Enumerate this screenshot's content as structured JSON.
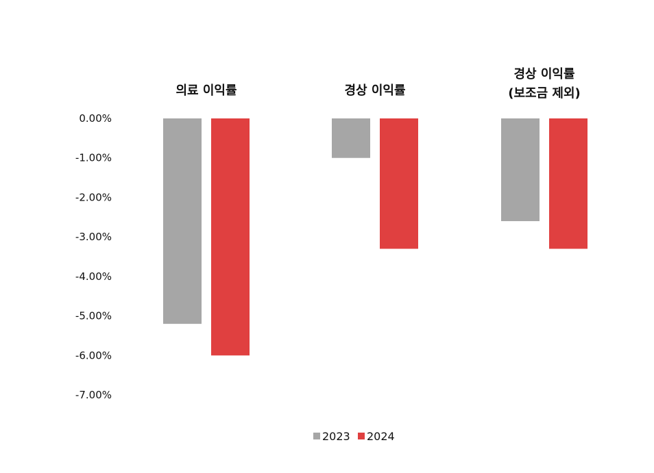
{
  "chart_data": {
    "type": "bar",
    "categories": [
      [
        "의료 이익률"
      ],
      [
        "경상 이익률"
      ],
      [
        "경상 이익률",
        "(보조금 제외)"
      ]
    ],
    "series": [
      {
        "name": "2023",
        "color": "#a6a6a6",
        "values": [
          -5.2,
          -1.0,
          -2.6
        ]
      },
      {
        "name": "2024",
        "color": "#e04040",
        "values": [
          -6.0,
          -3.3,
          -3.3
        ]
      }
    ],
    "y_ticks": [
      "0.00%",
      "-1.00%",
      "-2.00%",
      "-3.00%",
      "-4.00%",
      "-5.00%",
      "-6.00%",
      "-7.00%"
    ],
    "ylim": [
      -7,
      0
    ],
    "legend_position": "bottom-center",
    "grid": false
  }
}
